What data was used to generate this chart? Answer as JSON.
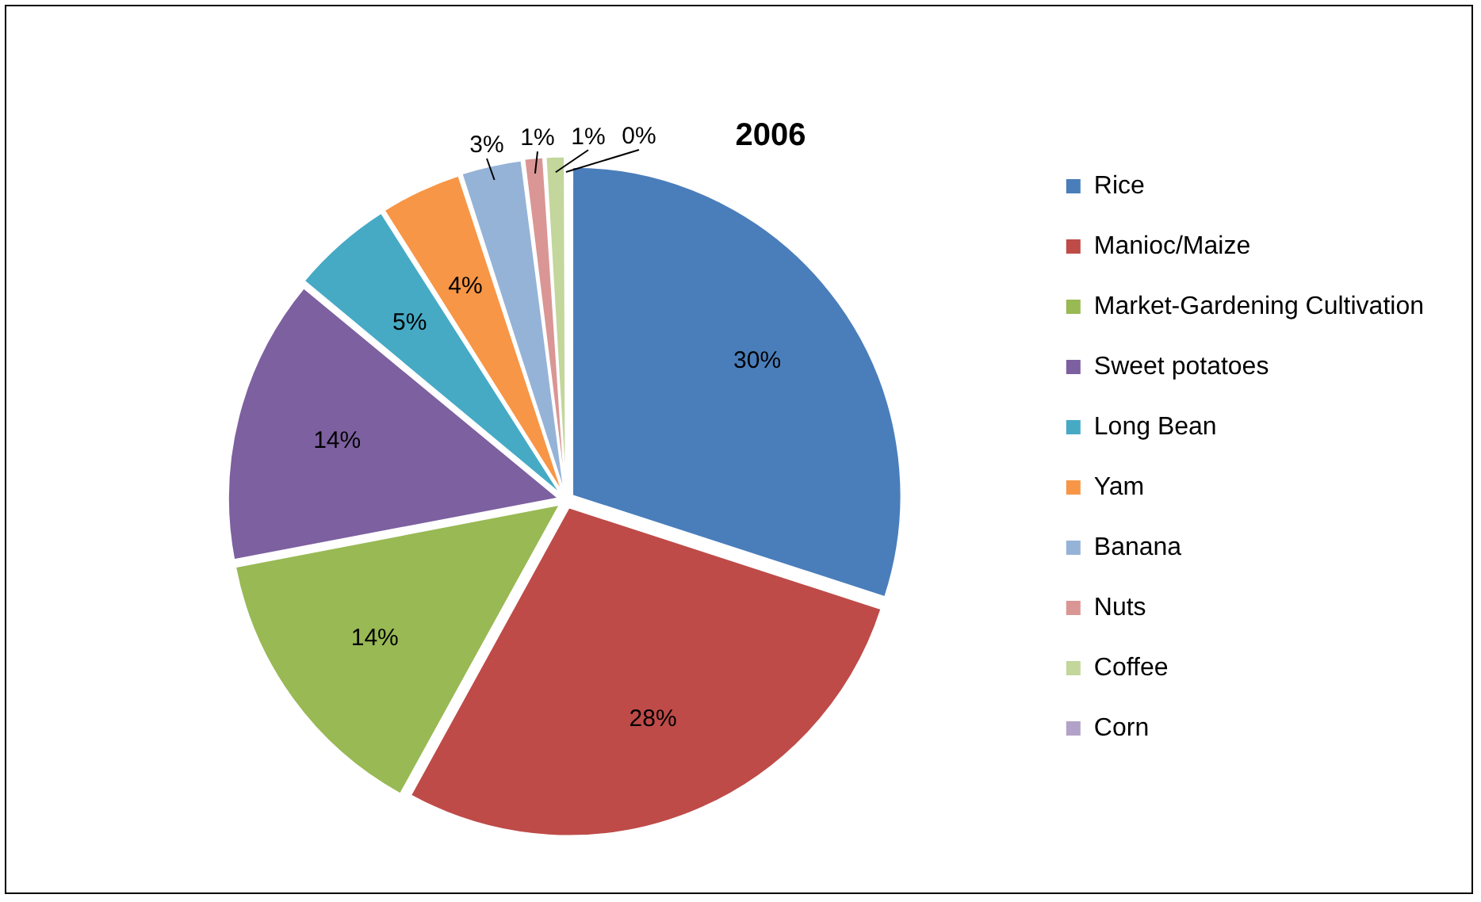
{
  "chart_data": {
    "type": "pie",
    "title": "2006",
    "categories": [
      "Rice",
      "Manioc/Maize",
      "Market-Gardening Cultivation",
      "Sweet potatoes",
      "Long Bean",
      "Yam",
      "Banana",
      "Nuts",
      "Coffee",
      "Corn"
    ],
    "values": [
      30,
      28,
      14,
      14,
      5,
      4,
      3,
      1,
      1,
      0
    ],
    "value_labels": [
      "30%",
      "28%",
      "14%",
      "14%",
      "5%",
      "4%",
      "3%",
      "1%",
      "1%",
      "0%"
    ],
    "colors": [
      "#4a7ebb",
      "#be4b48",
      "#98b954",
      "#7d60a0",
      "#46aac5",
      "#f79646",
      "#95b3d7",
      "#d99694",
      "#c3d69b",
      "#b3a2c7"
    ],
    "legend": "right"
  }
}
